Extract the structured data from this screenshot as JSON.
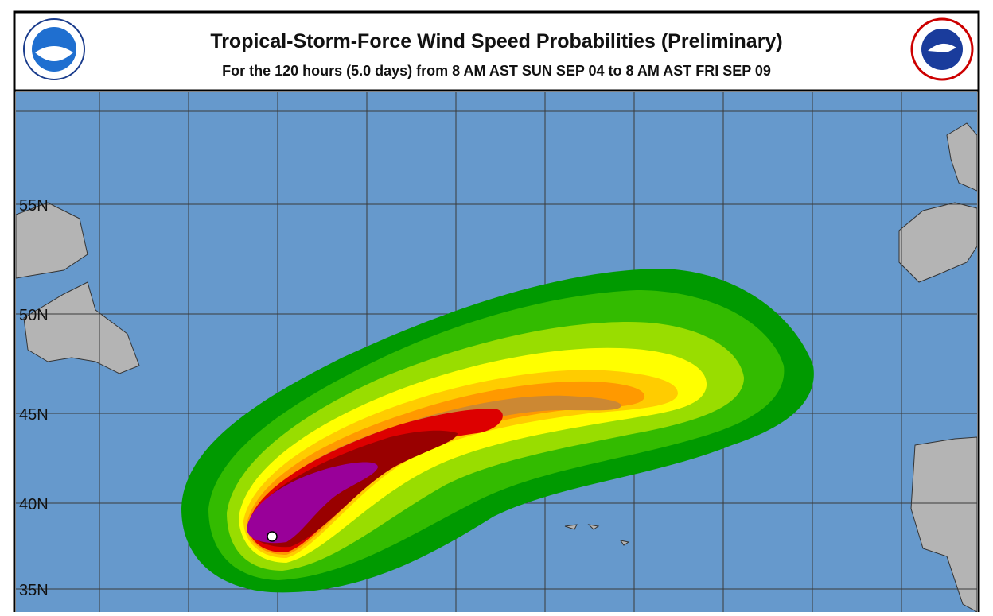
{
  "header": {
    "title": "Tropical-Storm-Force Wind Speed Probabilities (Preliminary)",
    "subtitle": "For the 120 hours (5.0 days) from 8 AM AST SUN SEP 04 to 8 AM AST FRI SEP 09"
  },
  "map": {
    "lat_labels": [
      "55N",
      "50N",
      "45N",
      "40N",
      "35N"
    ]
  }
}
